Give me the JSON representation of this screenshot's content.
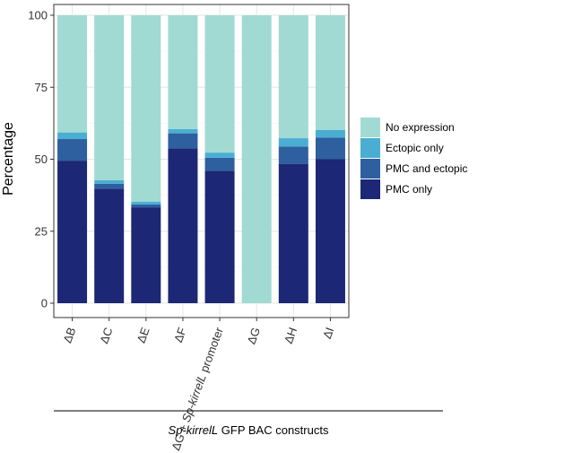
{
  "chart_data": {
    "type": "bar",
    "stacked": true,
    "ylabel": "Percentage",
    "ylim": [
      0,
      100
    ],
    "yticks": [
      0,
      25,
      50,
      75,
      100
    ],
    "grid": true,
    "legend_position": "right",
    "categories": [
      "ΔB",
      "ΔC",
      "ΔE",
      "ΔF",
      "ΔG + Sp-kirrelL promoter",
      "ΔG",
      "ΔH",
      "ΔI"
    ],
    "series": [
      {
        "name": "PMC only",
        "color": "#1c2775",
        "values": [
          49.5,
          39.8,
          33.3,
          53.8,
          46.0,
          0,
          48.4,
          50.0
        ]
      },
      {
        "name": "PMC and ectopic",
        "color": "#2e5f9f",
        "values": [
          7.5,
          1.7,
          1.0,
          5.2,
          4.5,
          0,
          6.0,
          7.5
        ]
      },
      {
        "name": "Ectopic only",
        "color": "#4aaed3",
        "values": [
          2.3,
          1.2,
          0.9,
          1.5,
          1.8,
          0,
          2.9,
          2.7
        ]
      },
      {
        "name": "No expression",
        "color": "#a1dad2",
        "values": [
          40.7,
          57.3,
          64.8,
          39.5,
          47.7,
          100,
          42.7,
          39.8
        ]
      }
    ],
    "legend_order": [
      "No expression",
      "Ectopic only",
      "PMC and ectopic",
      "PMC only"
    ],
    "x_group_label": "Sp-kirrelL GFP BAC constructs"
  }
}
